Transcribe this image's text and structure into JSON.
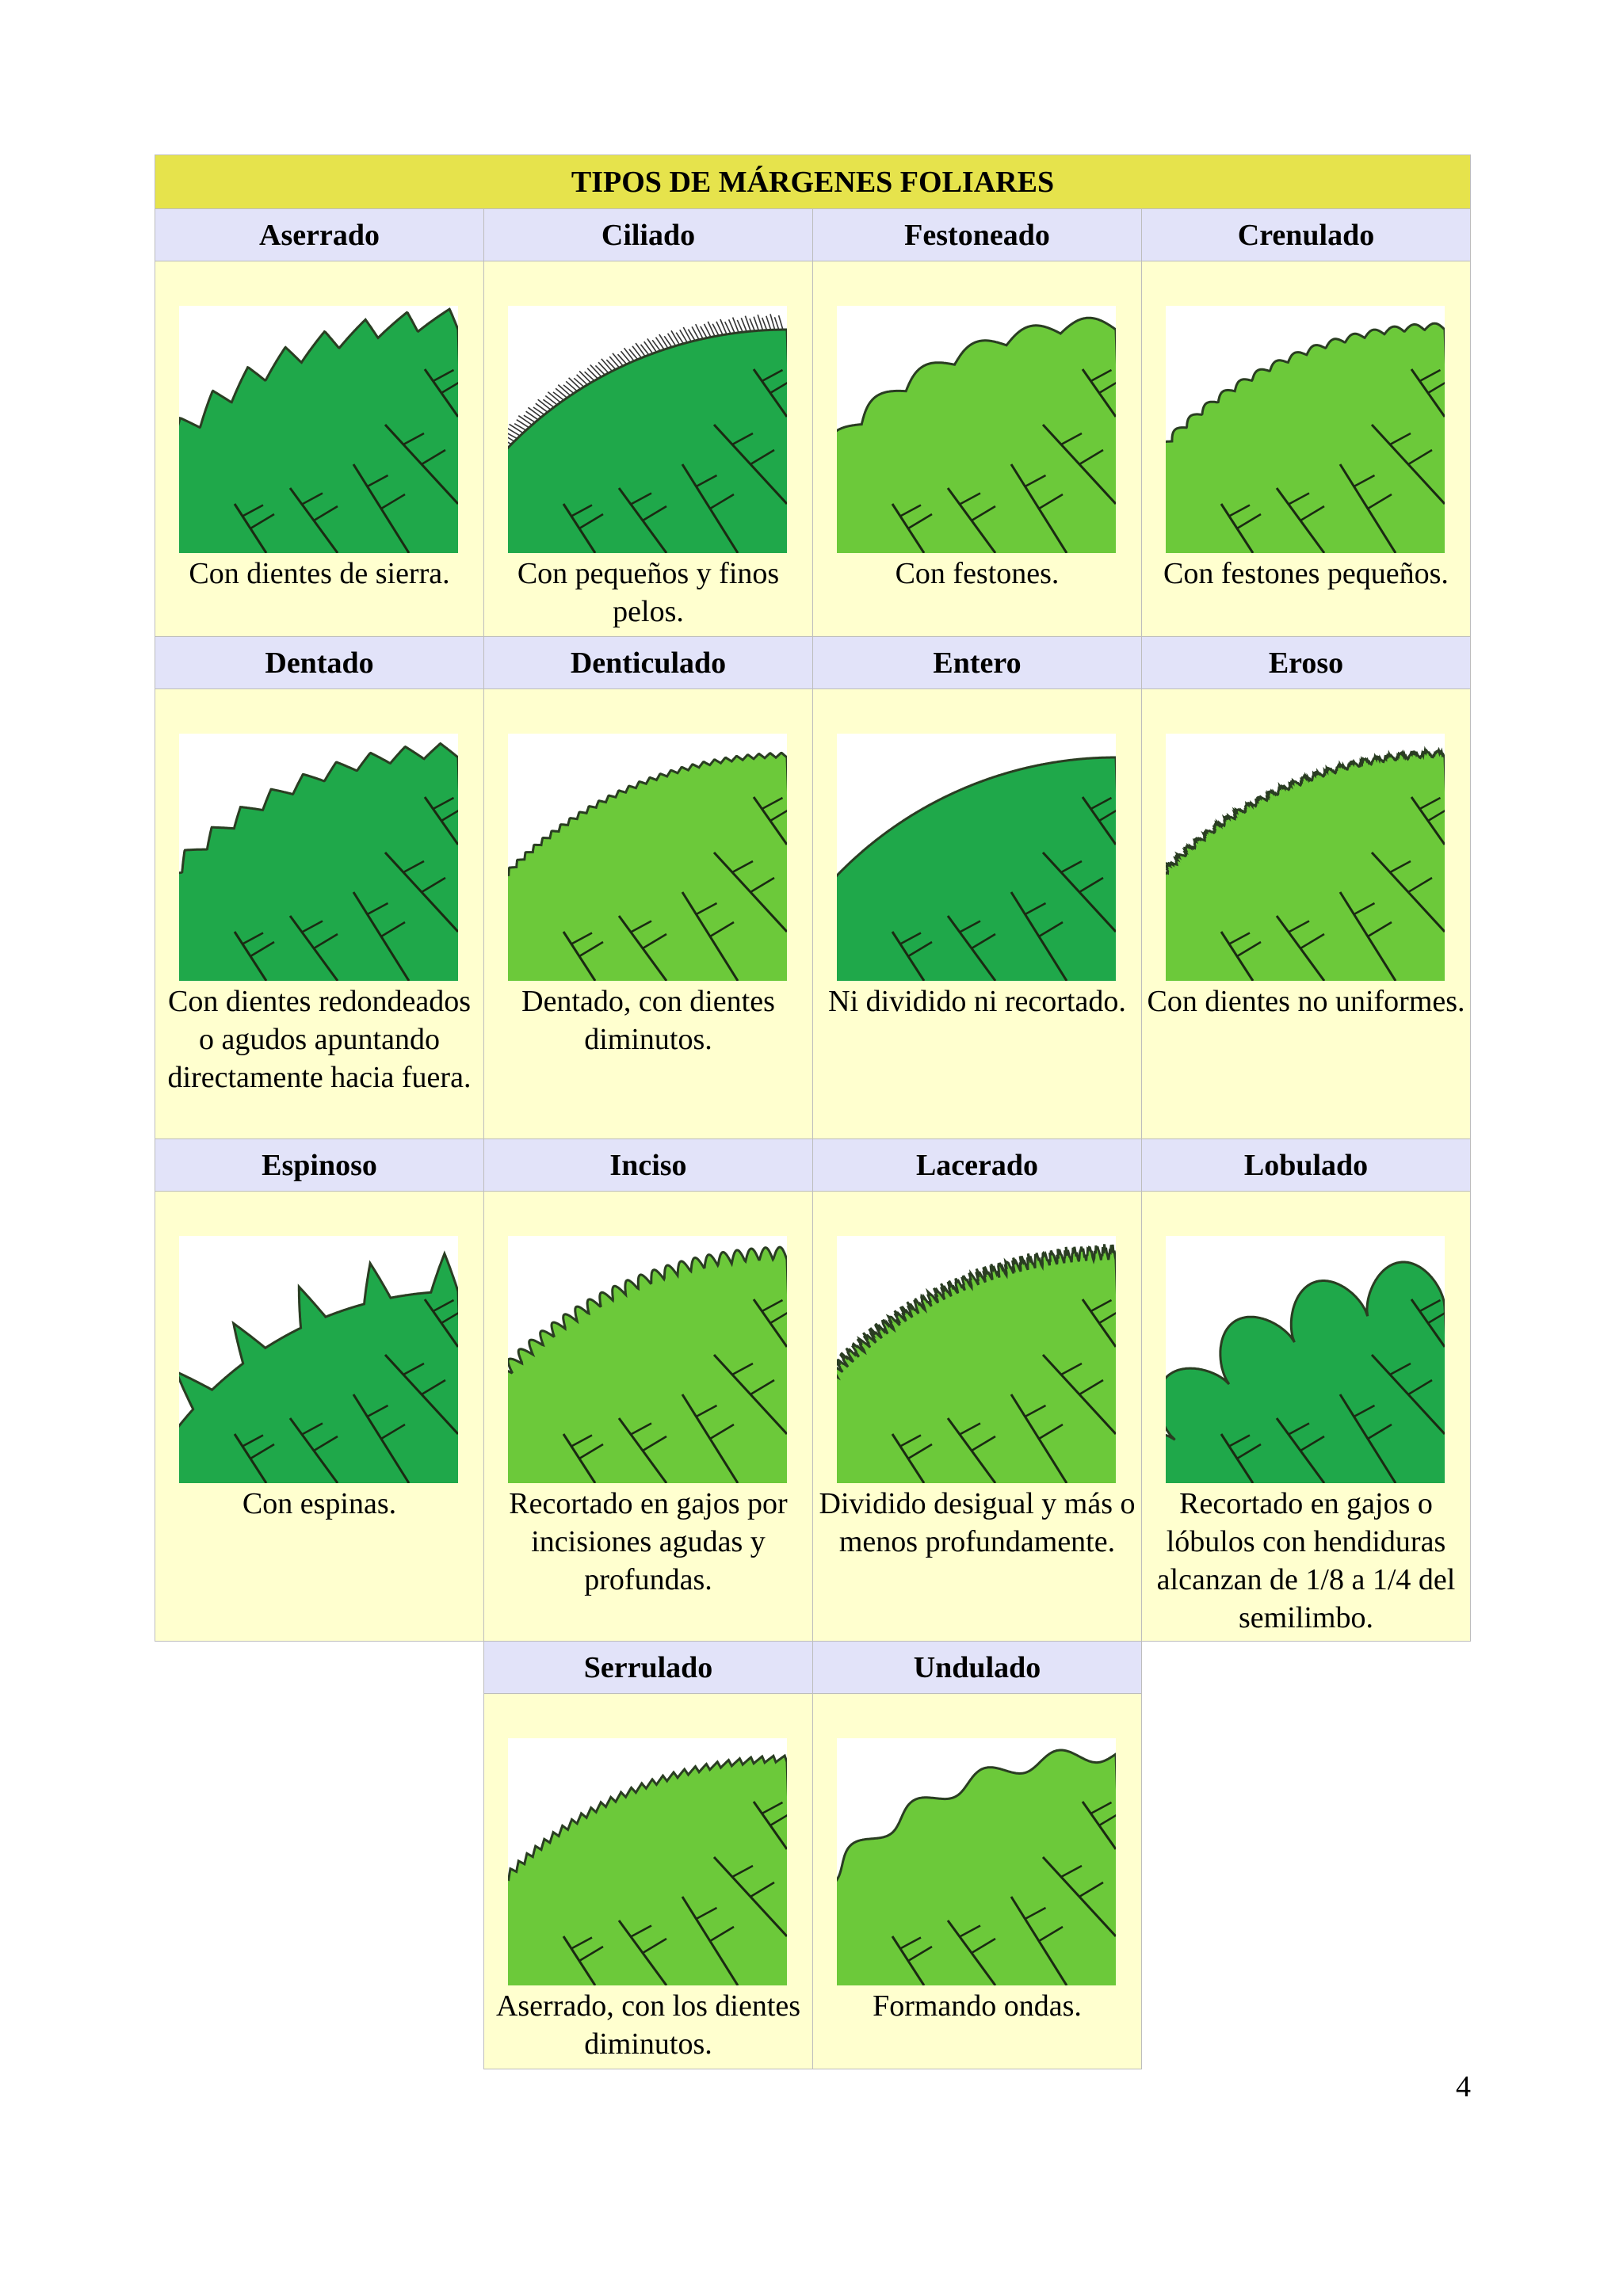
{
  "title": "TIPOS DE MÁRGENES FOLIARES",
  "page_number": "4",
  "leaf_colors": {
    "dark": "#1fa84a",
    "light": "#6cc93a",
    "vein": "#1a2a12",
    "edge": "#2a3d22"
  },
  "types": [
    {
      "name": "Aserrado",
      "description": "Con dientes de sierra.",
      "shade": "dark",
      "margin": "aserrado"
    },
    {
      "name": "Ciliado",
      "description": "Con pequeños y finos pelos.",
      "shade": "dark",
      "margin": "ciliado"
    },
    {
      "name": "Festoneado",
      "description": "Con festones.",
      "shade": "light",
      "margin": "festoneado"
    },
    {
      "name": "Crenulado",
      "description": "Con festones pequeños.",
      "shade": "light",
      "margin": "crenulado"
    },
    {
      "name": "Dentado",
      "description": "Con dientes redondeados o agudos apuntando directamente hacia fuera.",
      "shade": "dark",
      "margin": "dentado"
    },
    {
      "name": "Denticulado",
      "description": "Dentado, con dientes diminutos.",
      "shade": "light",
      "margin": "denticulado"
    },
    {
      "name": "Entero",
      "description": "Ni dividido ni recortado.",
      "shade": "dark",
      "margin": "entero"
    },
    {
      "name": "Eroso",
      "description": "Con dientes no uniformes.",
      "shade": "light",
      "margin": "eroso"
    },
    {
      "name": "Espinoso",
      "description": "Con espinas.",
      "shade": "dark",
      "margin": "espinoso"
    },
    {
      "name": "Inciso",
      "description": "Recortado en gajos por incisiones agudas y profundas.",
      "shade": "light",
      "margin": "inciso"
    },
    {
      "name": "Lacerado",
      "description": "Dividido desigual y más o menos profundamente.",
      "shade": "light",
      "margin": "lacerado"
    },
    {
      "name": "Lobulado",
      "description": "Recortado en gajos o lóbulos con hendiduras alcanzan de 1/8 a 1/4 del semilimbo.",
      "shade": "dark",
      "margin": "lobulado"
    },
    {
      "name": "Serrulado",
      "description": "Aserrado, con los dientes diminutos.",
      "shade": "light",
      "margin": "serrulado"
    },
    {
      "name": "Undulado",
      "description": "Formando ondas.",
      "shade": "light",
      "margin": "undulado"
    }
  ]
}
